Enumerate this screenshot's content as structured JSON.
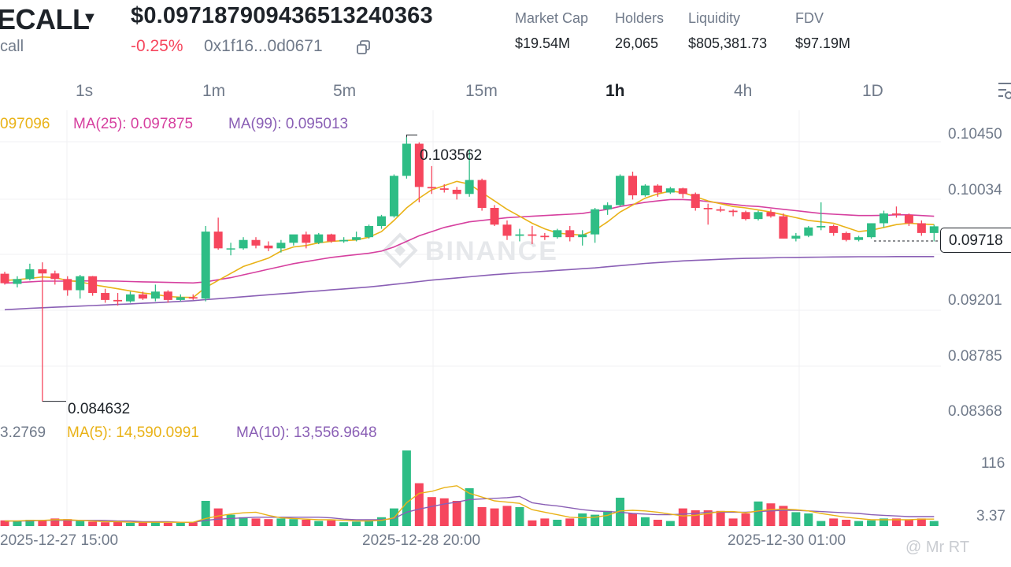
{
  "header": {
    "token_name": "ECALL",
    "token_sub": "call",
    "price": "$0.097187909436513240363",
    "change": "-0.25%",
    "address": "0x1f16...0d0671",
    "stats": [
      {
        "label": "Market Cap",
        "value": "$19.54M"
      },
      {
        "label": "Holders",
        "value": "26,065"
      },
      {
        "label": "Liquidity",
        "value": "$805,381.73"
      },
      {
        "label": "FDV",
        "value": "$97.19M"
      }
    ]
  },
  "timeframes": [
    "1s",
    "1m",
    "5m",
    "15m",
    "1h",
    "4h",
    "1D"
  ],
  "active_timeframe": "1h",
  "legend": {
    "ma7": "097096",
    "ma25": "MA(25): 0.097875",
    "ma99": "MA(99): 0.095013"
  },
  "volume_legend": {
    "vol": "3.2769",
    "ma5": "MA(5): 14,590.0991",
    "ma10": "MA(10): 13,556.9648"
  },
  "price_axis": [
    "0.10450",
    "0.10034",
    "0.09201",
    "0.08785",
    "0.08368"
  ],
  "current_price_label": "0.09718",
  "volume_axis": [
    "116",
    "3.37"
  ],
  "time_axis": [
    "2025-12-27 15:00",
    "2025-12-28 20:00",
    "2025-12-30 01:00"
  ],
  "watermark": "BINANCE",
  "watermark_user": "@ Mr RT",
  "chart_data": {
    "type": "candlestick",
    "interval": "1h",
    "up_color": "#2ebd85",
    "down_color": "#f6465d",
    "ylim": [
      0.0832,
      0.1055
    ],
    "high_label": "0.103562",
    "low_label": "0.084632",
    "candles": [
      {
        "o": 0.09378,
        "h": 0.09392,
        "l": 0.093,
        "c": 0.0931
      },
      {
        "o": 0.09305,
        "h": 0.0936,
        "l": 0.0928,
        "c": 0.0934
      },
      {
        "o": 0.0934,
        "h": 0.0945,
        "l": 0.0933,
        "c": 0.0941
      },
      {
        "o": 0.0941,
        "h": 0.0946,
        "l": 0.08463,
        "c": 0.0938
      },
      {
        "o": 0.0938,
        "h": 0.094,
        "l": 0.093,
        "c": 0.0934
      },
      {
        "o": 0.0934,
        "h": 0.0936,
        "l": 0.0922,
        "c": 0.0926
      },
      {
        "o": 0.0926,
        "h": 0.0937,
        "l": 0.092,
        "c": 0.0936
      },
      {
        "o": 0.0936,
        "h": 0.09362,
        "l": 0.0922,
        "c": 0.0924
      },
      {
        "o": 0.0924,
        "h": 0.0927,
        "l": 0.0917,
        "c": 0.0919
      },
      {
        "o": 0.0919,
        "h": 0.0924,
        "l": 0.0915,
        "c": 0.0918
      },
      {
        "o": 0.0918,
        "h": 0.0925,
        "l": 0.0917,
        "c": 0.0923
      },
      {
        "o": 0.0923,
        "h": 0.0925,
        "l": 0.0919,
        "c": 0.092
      },
      {
        "o": 0.092,
        "h": 0.093,
        "l": 0.0918,
        "c": 0.0925
      },
      {
        "o": 0.0925,
        "h": 0.0926,
        "l": 0.0917,
        "c": 0.0919
      },
      {
        "o": 0.0919,
        "h": 0.0923,
        "l": 0.0918,
        "c": 0.0921
      },
      {
        "o": 0.0921,
        "h": 0.0923,
        "l": 0.0919,
        "c": 0.092
      },
      {
        "o": 0.092,
        "h": 0.0972,
        "l": 0.0918,
        "c": 0.0968
      },
      {
        "o": 0.0968,
        "h": 0.0978,
        "l": 0.0955,
        "c": 0.0956
      },
      {
        "o": 0.0956,
        "h": 0.096,
        "l": 0.0951,
        "c": 0.0956
      },
      {
        "o": 0.0956,
        "h": 0.0964,
        "l": 0.0955,
        "c": 0.0962
      },
      {
        "o": 0.0962,
        "h": 0.0964,
        "l": 0.0956,
        "c": 0.0958
      },
      {
        "o": 0.0958,
        "h": 0.0961,
        "l": 0.0954,
        "c": 0.0956
      },
      {
        "o": 0.0956,
        "h": 0.0962,
        "l": 0.0953,
        "c": 0.096
      },
      {
        "o": 0.096,
        "h": 0.0965,
        "l": 0.0958,
        "c": 0.0966
      },
      {
        "o": 0.0966,
        "h": 0.0968,
        "l": 0.0956,
        "c": 0.096
      },
      {
        "o": 0.096,
        "h": 0.0967,
        "l": 0.0959,
        "c": 0.0966
      },
      {
        "o": 0.0966,
        "h": 0.09665,
        "l": 0.096,
        "c": 0.0961
      },
      {
        "o": 0.0961,
        "h": 0.0964,
        "l": 0.096,
        "c": 0.0962
      },
      {
        "o": 0.0962,
        "h": 0.0968,
        "l": 0.0961,
        "c": 0.0964
      },
      {
        "o": 0.0964,
        "h": 0.0973,
        "l": 0.0963,
        "c": 0.0972
      },
      {
        "o": 0.0972,
        "h": 0.098,
        "l": 0.097,
        "c": 0.0979
      },
      {
        "o": 0.0979,
        "h": 0.1009,
        "l": 0.0978,
        "c": 0.1008
      },
      {
        "o": 0.1008,
        "h": 0.10356,
        "l": 0.1006,
        "c": 0.1031
      },
      {
        "o": 0.1031,
        "h": 0.1032,
        "l": 0.0989,
        "c": 0.1
      },
      {
        "o": 0.1,
        "h": 0.1015,
        "l": 0.0995,
        "c": 0.0999
      },
      {
        "o": 0.0999,
        "h": 0.1002,
        "l": 0.0996,
        "c": 0.0998
      },
      {
        "o": 0.0998,
        "h": 0.1,
        "l": 0.0991,
        "c": 0.0995
      },
      {
        "o": 0.0995,
        "h": 0.1027,
        "l": 0.0993,
        "c": 0.1005
      },
      {
        "o": 0.1005,
        "h": 0.1006,
        "l": 0.0983,
        "c": 0.0985
      },
      {
        "o": 0.0985,
        "h": 0.0987,
        "l": 0.0972,
        "c": 0.0973
      },
      {
        "o": 0.0973,
        "h": 0.0976,
        "l": 0.0962,
        "c": 0.0965
      },
      {
        "o": 0.0965,
        "h": 0.097,
        "l": 0.0961,
        "c": 0.0966
      },
      {
        "o": 0.0966,
        "h": 0.0972,
        "l": 0.0959,
        "c": 0.0965
      },
      {
        "o": 0.0965,
        "h": 0.0967,
        "l": 0.0962,
        "c": 0.0964
      },
      {
        "o": 0.0964,
        "h": 0.097,
        "l": 0.0963,
        "c": 0.0969
      },
      {
        "o": 0.0969,
        "h": 0.0972,
        "l": 0.0961,
        "c": 0.0964
      },
      {
        "o": 0.0964,
        "h": 0.0969,
        "l": 0.0958,
        "c": 0.0966
      },
      {
        "o": 0.0966,
        "h": 0.0985,
        "l": 0.096,
        "c": 0.0984
      },
      {
        "o": 0.0984,
        "h": 0.0989,
        "l": 0.098,
        "c": 0.0987
      },
      {
        "o": 0.0987,
        "h": 0.1009,
        "l": 0.0986,
        "c": 0.1008
      },
      {
        "o": 0.1008,
        "h": 0.1011,
        "l": 0.0991,
        "c": 0.0994
      },
      {
        "o": 0.0994,
        "h": 0.1002,
        "l": 0.0993,
        "c": 0.1001
      },
      {
        "o": 0.1001,
        "h": 0.1002,
        "l": 0.0993,
        "c": 0.0996
      },
      {
        "o": 0.0996,
        "h": 0.1,
        "l": 0.0995,
        "c": 0.0999
      },
      {
        "o": 0.0999,
        "h": 0.09995,
        "l": 0.0992,
        "c": 0.0995
      },
      {
        "o": 0.0995,
        "h": 0.0996,
        "l": 0.0983,
        "c": 0.0985
      },
      {
        "o": 0.0985,
        "h": 0.0988,
        "l": 0.0973,
        "c": 0.0984
      },
      {
        "o": 0.0984,
        "h": 0.0986,
        "l": 0.0982,
        "c": 0.0983
      },
      {
        "o": 0.0983,
        "h": 0.0984,
        "l": 0.0979,
        "c": 0.0982
      },
      {
        "o": 0.0982,
        "h": 0.0983,
        "l": 0.0976,
        "c": 0.0977
      },
      {
        "o": 0.0977,
        "h": 0.0983,
        "l": 0.0976,
        "c": 0.0982
      },
      {
        "o": 0.0982,
        "h": 0.0984,
        "l": 0.0978,
        "c": 0.0979
      },
      {
        "o": 0.0979,
        "h": 0.0981,
        "l": 0.0963,
        "c": 0.0963
      },
      {
        "o": 0.0963,
        "h": 0.0967,
        "l": 0.0961,
        "c": 0.0965
      },
      {
        "o": 0.0965,
        "h": 0.0972,
        "l": 0.0964,
        "c": 0.0971
      },
      {
        "o": 0.0971,
        "h": 0.0989,
        "l": 0.0969,
        "c": 0.0972
      },
      {
        "o": 0.0972,
        "h": 0.0973,
        "l": 0.0965,
        "c": 0.0967
      },
      {
        "o": 0.0967,
        "h": 0.0968,
        "l": 0.0961,
        "c": 0.0962
      },
      {
        "o": 0.0962,
        "h": 0.0965,
        "l": 0.0961,
        "c": 0.0964
      },
      {
        "o": 0.0964,
        "h": 0.0974,
        "l": 0.0963,
        "c": 0.0974
      },
      {
        "o": 0.0974,
        "h": 0.0983,
        "l": 0.0971,
        "c": 0.0981
      },
      {
        "o": 0.0981,
        "h": 0.0986,
        "l": 0.0978,
        "c": 0.098
      },
      {
        "o": 0.098,
        "h": 0.0981,
        "l": 0.0972,
        "c": 0.0974
      },
      {
        "o": 0.0974,
        "h": 0.0976,
        "l": 0.0965,
        "c": 0.0967
      },
      {
        "o": 0.0967,
        "h": 0.0973,
        "l": 0.0961,
        "c": 0.09718
      }
    ],
    "ma7": [
      0.0933,
      0.09335,
      0.09345,
      0.09355,
      0.0935,
      0.0933,
      0.0932,
      0.093,
      0.09285,
      0.0927,
      0.09255,
      0.0924,
      0.0923,
      0.09215,
      0.0921,
      0.09208,
      0.0928,
      0.0933,
      0.0938,
      0.0943,
      0.0946,
      0.0949,
      0.0954,
      0.0957,
      0.0958,
      0.096,
      0.0961,
      0.09615,
      0.0962,
      0.0964,
      0.0968,
      0.0976,
      0.0985,
      0.0992,
      0.0998,
      0.1001,
      0.1004,
      0.1002,
      0.0996,
      0.099,
      0.0984,
      0.0979,
      0.0974,
      0.097,
      0.0967,
      0.0966,
      0.09655,
      0.0969,
      0.0975,
      0.0982,
      0.0987,
      0.0992,
      0.0995,
      0.0997,
      0.0996,
      0.0993,
      0.099,
      0.0988,
      0.0986,
      0.0985,
      0.09835,
      0.0982,
      0.098,
      0.0978,
      0.0976,
      0.0975,
      0.0974,
      0.0971,
      0.0968,
      0.0969,
      0.0971,
      0.0973,
      0.0974,
      0.09735,
      0.0973
    ],
    "ma25": [
      0.0931,
      0.09315,
      0.0932,
      0.09325,
      0.09325,
      0.09325,
      0.09326,
      0.09327,
      0.09326,
      0.09325,
      0.09322,
      0.0932,
      0.09318,
      0.09316,
      0.09314,
      0.09312,
      0.0932,
      0.09335,
      0.0935,
      0.0937,
      0.0939,
      0.0941,
      0.0943,
      0.0945,
      0.09465,
      0.0948,
      0.09495,
      0.09505,
      0.09515,
      0.09525,
      0.0954,
      0.0957,
      0.0961,
      0.0965,
      0.0968,
      0.0971,
      0.0973,
      0.0975,
      0.0976,
      0.0977,
      0.0978,
      0.09785,
      0.0979,
      0.09795,
      0.098,
      0.09805,
      0.0981,
      0.09825,
      0.0984,
      0.0986,
      0.09875,
      0.0989,
      0.099,
      0.0991,
      0.0991,
      0.09905,
      0.09895,
      0.09885,
      0.09875,
      0.09865,
      0.0986,
      0.0985,
      0.0984,
      0.0983,
      0.0982,
      0.0981,
      0.09805,
      0.098,
      0.09795,
      0.09795,
      0.09797,
      0.098,
      0.098,
      0.09795,
      0.0979
    ],
    "ma99": [
      0.0912,
      0.09125,
      0.0913,
      0.09134,
      0.09138,
      0.09142,
      0.09146,
      0.0915,
      0.09154,
      0.09158,
      0.09162,
      0.09166,
      0.0917,
      0.09175,
      0.0918,
      0.09185,
      0.09192,
      0.09199,
      0.09206,
      0.09213,
      0.0922,
      0.09227,
      0.09234,
      0.09241,
      0.09248,
      0.09255,
      0.09262,
      0.09269,
      0.09276,
      0.09283,
      0.09292,
      0.09302,
      0.09312,
      0.09322,
      0.09332,
      0.0934,
      0.09348,
      0.09356,
      0.09364,
      0.09372,
      0.09378,
      0.09384,
      0.0939,
      0.09396,
      0.09402,
      0.09408,
      0.09414,
      0.0942,
      0.09428,
      0.09436,
      0.09444,
      0.09452,
      0.09458,
      0.09464,
      0.0947,
      0.09474,
      0.09478,
      0.09482,
      0.09485,
      0.09488,
      0.0949,
      0.09492,
      0.09494,
      0.09495,
      0.09496,
      0.09497,
      0.09498,
      0.09499,
      0.095,
      0.095,
      0.095,
      0.09501,
      0.09501,
      0.09501,
      0.09501
    ],
    "volume_ylim": [
      0,
      125
    ],
    "volume": [
      9,
      8,
      10,
      9,
      12,
      11,
      8,
      7,
      6,
      7,
      5,
      6,
      6,
      5,
      5,
      6,
      40,
      28,
      18,
      14,
      12,
      11,
      12,
      11,
      10,
      8,
      9,
      6,
      7,
      9,
      14,
      28,
      120,
      68,
      46,
      44,
      40,
      60,
      30,
      28,
      32,
      30,
      9,
      12,
      10,
      12,
      20,
      18,
      24,
      45,
      20,
      14,
      10,
      8,
      28,
      25,
      25,
      24,
      12,
      20,
      39,
      36,
      32,
      22,
      20,
      8,
      12,
      10,
      8,
      9,
      12,
      12,
      10,
      12,
      8
    ],
    "volume_ma5": [
      8,
      8,
      9,
      9,
      10,
      10,
      9,
      8,
      7,
      7,
      6,
      6,
      6,
      6,
      6,
      6,
      12,
      16,
      19,
      21,
      22,
      17,
      13,
      12,
      11,
      10,
      10,
      9,
      8,
      8,
      9,
      13,
      37,
      52,
      55,
      61,
      64,
      52,
      46,
      40,
      38,
      36,
      26,
      22,
      18,
      14,
      13,
      14,
      17,
      24,
      25,
      24,
      22,
      19,
      16,
      17,
      20,
      23,
      23,
      21,
      24,
      26,
      27,
      26,
      24,
      20,
      17,
      14,
      12,
      10,
      10,
      10,
      10,
      11,
      11
    ],
    "volume_ma10": [
      8,
      8,
      8,
      9,
      9,
      9,
      9,
      9,
      9,
      8,
      8,
      7,
      7,
      7,
      6,
      6,
      9,
      11,
      12,
      13,
      14,
      14,
      14,
      14,
      14,
      14,
      13,
      11,
      10,
      10,
      10,
      12,
      22,
      27,
      31,
      35,
      38,
      42,
      43,
      44,
      45,
      47,
      37,
      34,
      32,
      29,
      26,
      24,
      23,
      22,
      20,
      19,
      18,
      18,
      19,
      20,
      22,
      22,
      22,
      22,
      23,
      24,
      25,
      25,
      24,
      23,
      22,
      21,
      20,
      18,
      17,
      16,
      15,
      15,
      15
    ]
  }
}
